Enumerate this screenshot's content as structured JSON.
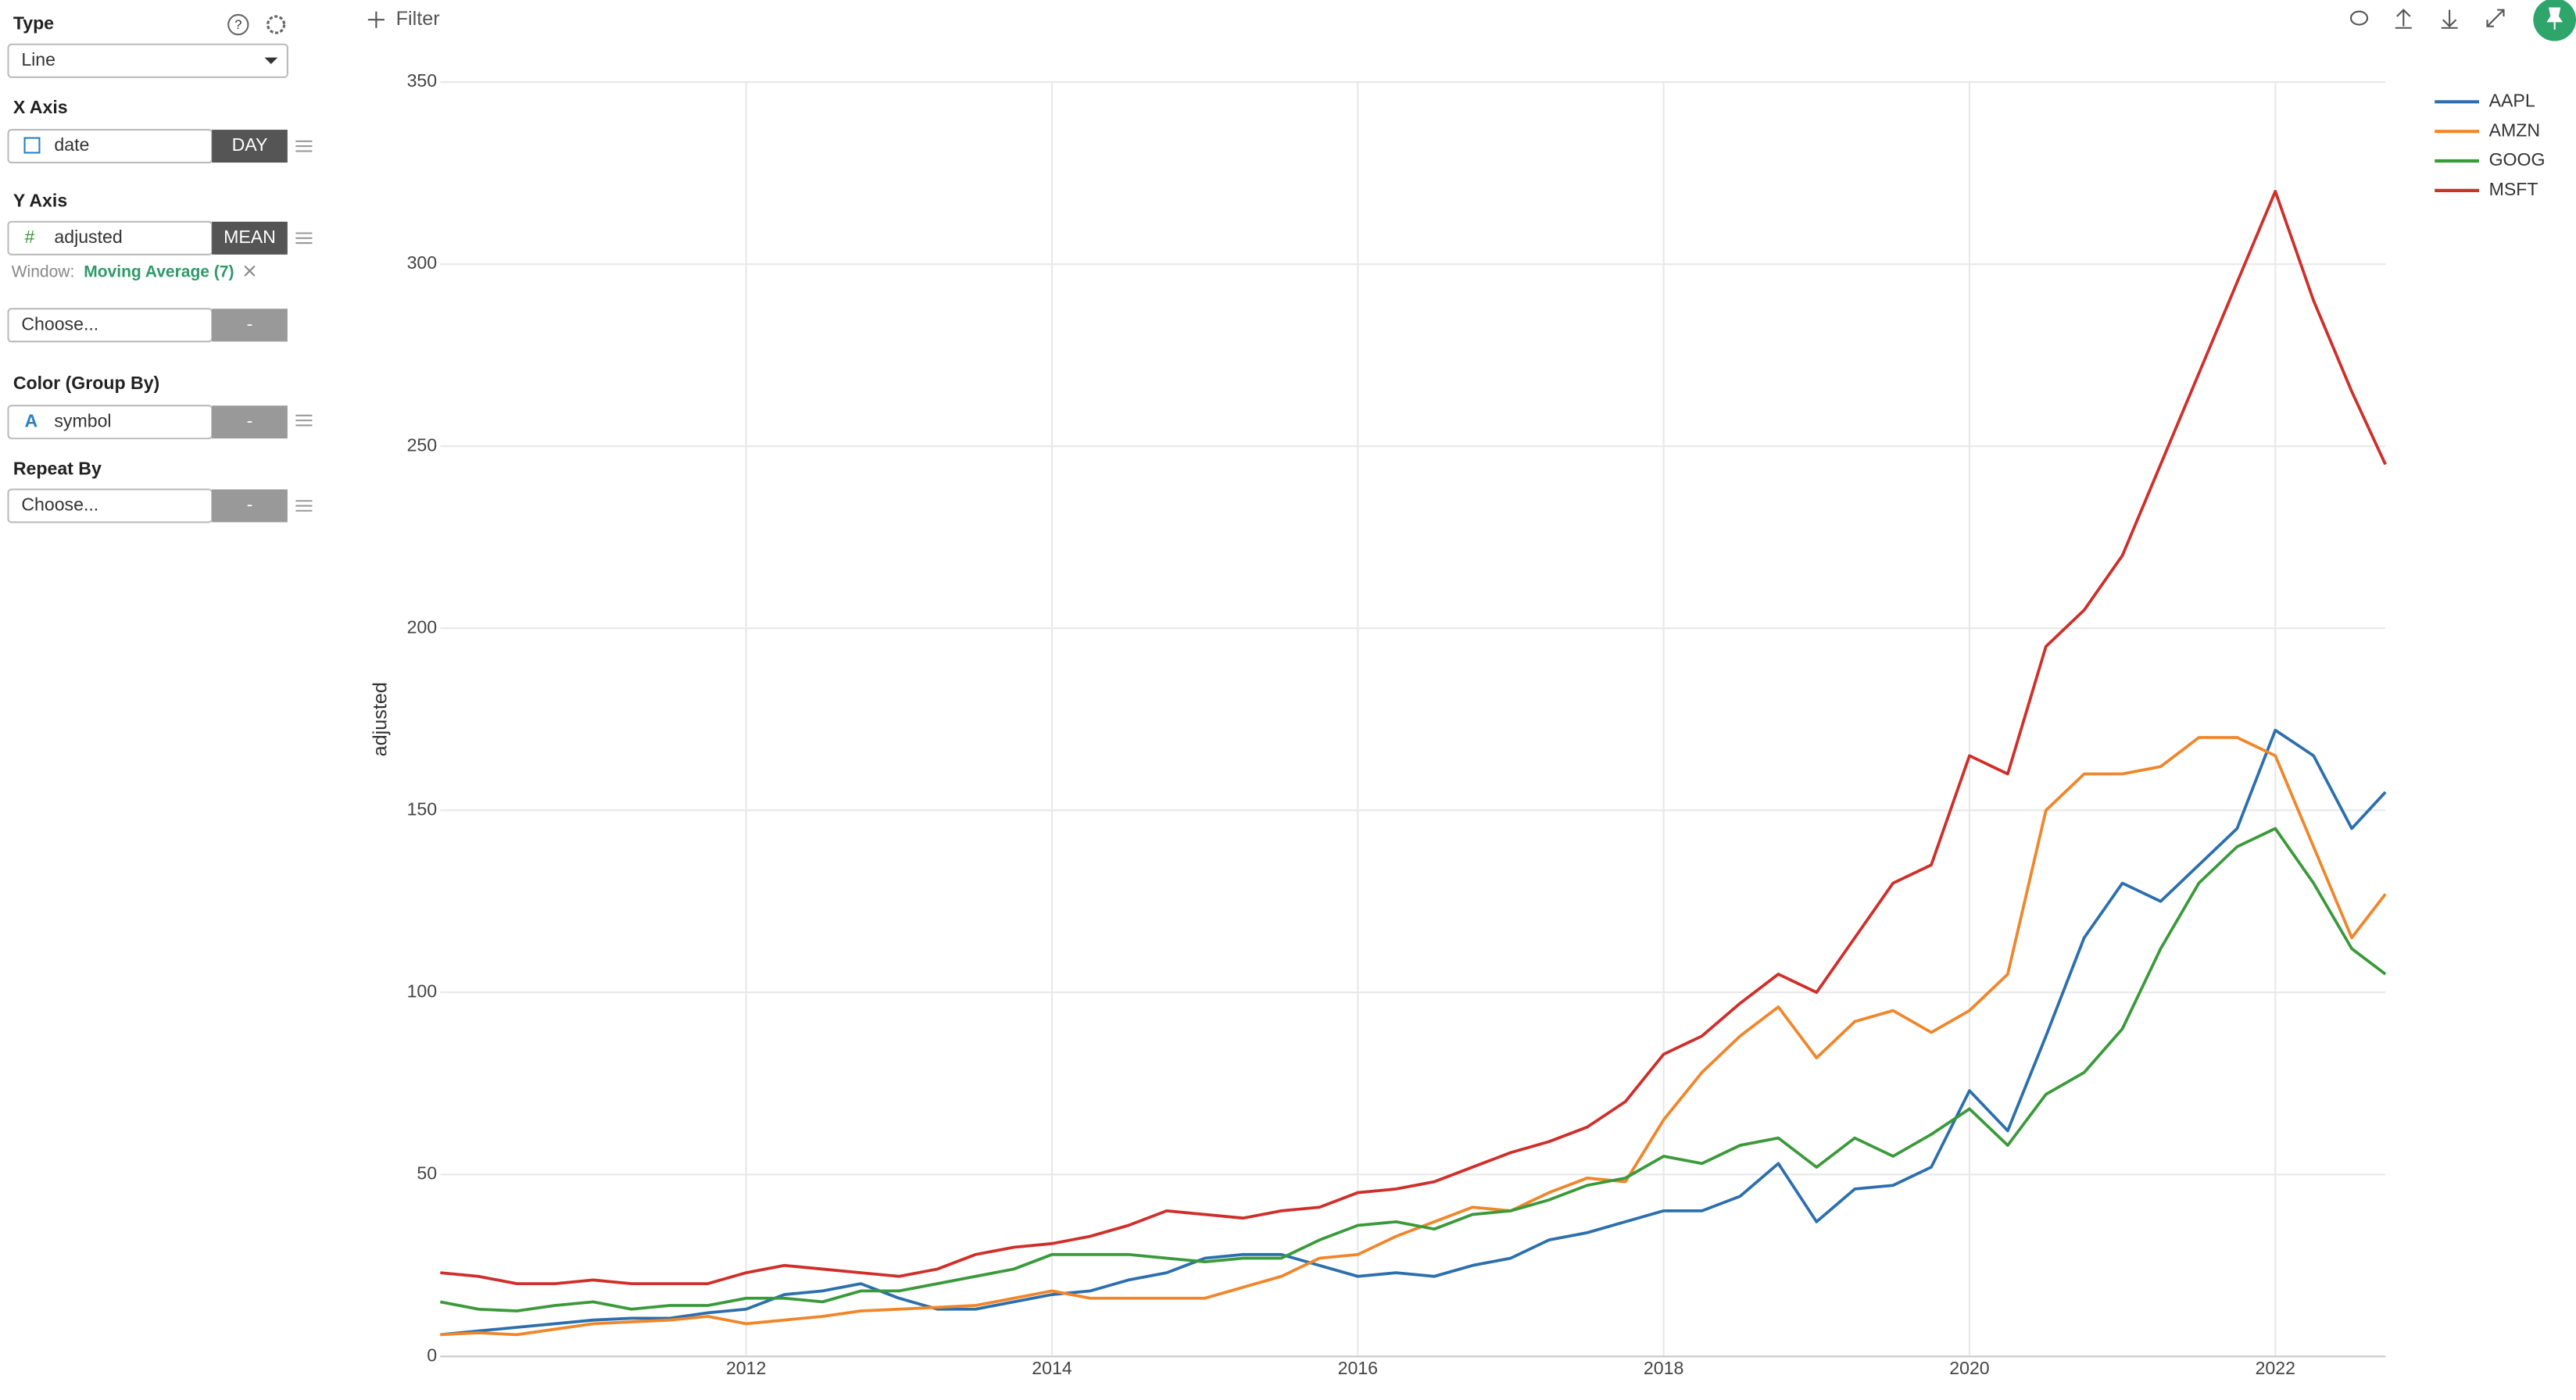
{
  "sidebar": {
    "type": {
      "label": "Type",
      "value": "Line"
    },
    "x_axis": {
      "label": "X Axis",
      "field": "date",
      "aggregation": "DAY"
    },
    "y_axis": {
      "label": "Y Axis",
      "field": "adjusted",
      "aggregation": "MEAN",
      "window_label": "Window:",
      "window_value": "Moving Average (7)"
    },
    "y_axis_extra": {
      "field": "Choose...",
      "aggregation": "-"
    },
    "color": {
      "label": "Color (Group By)",
      "field": "symbol",
      "aggregation": "-"
    },
    "repeat": {
      "label": "Repeat By",
      "field": "Choose...",
      "aggregation": "-"
    }
  },
  "toolbar": {
    "filter": "Filter"
  },
  "chart_data": {
    "type": "line",
    "y_label": "adjusted",
    "x": [
      2010,
      2010.25,
      2010.5,
      2010.75,
      2011,
      2011.25,
      2011.5,
      2011.75,
      2012,
      2012.25,
      2012.5,
      2012.75,
      2013,
      2013.25,
      2013.5,
      2013.75,
      2014,
      2014.25,
      2014.5,
      2014.75,
      2015,
      2015.25,
      2015.5,
      2015.75,
      2016,
      2016.25,
      2016.5,
      2016.75,
      2017,
      2017.25,
      2017.5,
      2017.75,
      2018,
      2018.25,
      2018.5,
      2018.75,
      2019,
      2019.25,
      2019.5,
      2019.75,
      2020,
      2020.25,
      2020.5,
      2020.75,
      2021,
      2021.25,
      2021.5,
      2021.75,
      2022,
      2022.25,
      2022.5,
      2022.72
    ],
    "series": [
      {
        "name": "AAPL",
        "color": "#2c6fad",
        "values": [
          6,
          7,
          8,
          9,
          10,
          10.5,
          10.5,
          12,
          13,
          17,
          18,
          20,
          16,
          13,
          13,
          15,
          17,
          18,
          21,
          23,
          27,
          28,
          28,
          25,
          22,
          23,
          22,
          25,
          27,
          32,
          34,
          37,
          40,
          40,
          44,
          53,
          37,
          46,
          47,
          52,
          73,
          62,
          88,
          115,
          130,
          125,
          135,
          145,
          172,
          165,
          145,
          155
        ]
      },
      {
        "name": "AMZN",
        "color": "#f0862a",
        "values": [
          6,
          6.5,
          6,
          7.5,
          9,
          9.5,
          10,
          11,
          9,
          10,
          11,
          12.5,
          13,
          13.5,
          14,
          16,
          18,
          16,
          16,
          16,
          16,
          19,
          22,
          27,
          28,
          33,
          37,
          41,
          40,
          45,
          49,
          48,
          65,
          78,
          88,
          96,
          82,
          92,
          95,
          89,
          95,
          105,
          150,
          160,
          160,
          162,
          170,
          170,
          165,
          140,
          115,
          127
        ]
      },
      {
        "name": "GOOG",
        "color": "#3a9a3a",
        "values": [
          15,
          13,
          12.5,
          14,
          15,
          13,
          14,
          14,
          16,
          16,
          15,
          18,
          18,
          20,
          22,
          24,
          28,
          28,
          28,
          27,
          26,
          27,
          27,
          32,
          36,
          37,
          35,
          39,
          40,
          43,
          47,
          49,
          55,
          53,
          58,
          60,
          52,
          60,
          55,
          61,
          68,
          58,
          72,
          78,
          90,
          112,
          130,
          140,
          145,
          130,
          112,
          105
        ]
      },
      {
        "name": "MSFT",
        "color": "#cf2f2a",
        "values": [
          23,
          22,
          20,
          20,
          21,
          20,
          20,
          20,
          23,
          25,
          24,
          23,
          22,
          24,
          28,
          30,
          31,
          33,
          36,
          40,
          39,
          38,
          40,
          41,
          45,
          46,
          48,
          52,
          56,
          59,
          63,
          70,
          83,
          88,
          97,
          105,
          100,
          115,
          130,
          135,
          165,
          160,
          195,
          205,
          220,
          245,
          270,
          295,
          320,
          290,
          265,
          245
        ]
      }
    ],
    "xlim": [
      2010,
      2022.72
    ],
    "xticks": [
      2012,
      2014,
      2016,
      2018,
      2020,
      2022
    ],
    "ylim": [
      0,
      350
    ],
    "yticks": [
      0,
      50,
      100,
      150,
      200,
      250,
      300,
      350
    ],
    "grid": true,
    "legend": "top-right"
  }
}
